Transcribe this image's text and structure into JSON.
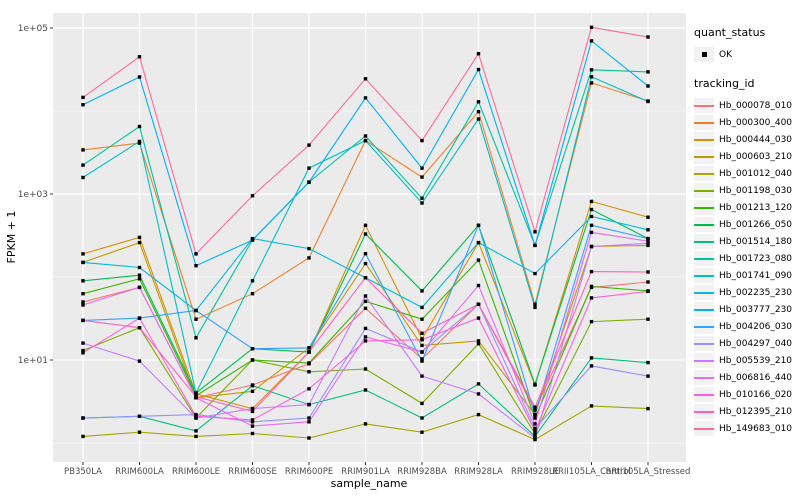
{
  "panel": {
    "background": "#EBEBEB",
    "grid_color": "#FFFFFF",
    "tick_color": "#333333",
    "point_color": "#000000"
  },
  "axes": {
    "x_title": "sample_name",
    "y_title": "FPKM + 1",
    "y_tick_labels": [
      "1e+05",
      "1e+03",
      "1e+01"
    ],
    "y_tick_values": [
      100000,
      1000,
      10
    ],
    "y_minor_values": [
      10000,
      100,
      1
    ]
  },
  "legend": {
    "quant_status_title": "quant_status",
    "quant_status_items": [
      {
        "label": "OK"
      }
    ],
    "tracking_id_title": "tracking_id"
  },
  "chart_data": {
    "type": "line",
    "title": "",
    "xlabel": "sample_name",
    "ylabel": "FPKM + 1",
    "y_scale": "log10",
    "ylim": [
      1,
      155000
    ],
    "grid": true,
    "legend_position": "right",
    "point_shape": "filled-square",
    "categories": [
      "PB350LA",
      "RRIM600LA",
      "RRIM600LE",
      "RRIM600SE",
      "RRIM600PE",
      "RRIM901LA",
      "RRIM928BA",
      "RRIM928LA",
      "RRIM928LE",
      "RRII105LA_Control",
      "RRII105LA_Stressed"
    ],
    "series": [
      {
        "name": "Hb_000078_010",
        "color": "#F8766D",
        "values": [
          50,
          75,
          3.5,
          5,
          9,
          42,
          10.3,
          47,
          2.5,
          75,
          87
        ]
      },
      {
        "name": "Hb_000300_400",
        "color": "#EA8331",
        "values": [
          3400,
          4100,
          31,
          63,
          170,
          4400,
          1600,
          9800,
          47,
          21800,
          13200
        ]
      },
      {
        "name": "Hb_000444_030",
        "color": "#D89000",
        "values": [
          190,
          300,
          3.9,
          2.6,
          12.5,
          420,
          18,
          260,
          5,
          815,
          525
        ]
      },
      {
        "name": "Hb_000603_210",
        "color": "#C09B00",
        "values": [
          150,
          260,
          3.5,
          4.2,
          14,
          145,
          15,
          17,
          2.2,
          233,
          240
        ]
      },
      {
        "name": "Hb_001012_040",
        "color": "#A3A500",
        "values": [
          1.2,
          1.35,
          1.2,
          1.3,
          1.15,
          1.7,
          1.35,
          2.2,
          1.1,
          2.8,
          2.6
        ]
      },
      {
        "name": "Hb_001198_030",
        "color": "#7CAE00",
        "values": [
          13,
          24.5,
          2.0,
          10,
          7.2,
          7.8,
          3.0,
          15.7,
          1.3,
          29,
          31
        ]
      },
      {
        "name": "Hb_001213_120",
        "color": "#39B600",
        "values": [
          63,
          95,
          3.7,
          10,
          9.2,
          51,
          31,
          160,
          2.0,
          77,
          68
        ]
      },
      {
        "name": "Hb_001266_050",
        "color": "#00BB4E",
        "values": [
          90,
          105,
          4.0,
          13.7,
          12.5,
          330,
          68,
          420,
          5.1,
          650,
          290
        ]
      },
      {
        "name": "Hb_001514_180",
        "color": "#00BF7D",
        "values": [
          2.0,
          2.1,
          1.4,
          4.9,
          2.9,
          4.35,
          2.0,
          5.15,
          1.2,
          10.6,
          9.3
        ]
      },
      {
        "name": "Hb_001723_080",
        "color": "#00C1A3",
        "values": [
          2230,
          6500,
          18.5,
          280,
          1390,
          5000,
          890,
          12900,
          240,
          31400,
          29600
        ]
      },
      {
        "name": "Hb_001741_090",
        "color": "#00BFC4",
        "values": [
          1580,
          4300,
          4.0,
          90,
          2050,
          4400,
          780,
          8000,
          43,
          25800,
          13000
        ]
      },
      {
        "name": "Hb_002235_230",
        "color": "#00BAE0",
        "values": [
          150,
          130,
          39.5,
          290,
          220,
          98,
          43,
          260,
          110,
          535,
          370
        ]
      },
      {
        "name": "Hb_003777_230",
        "color": "#00B0F6",
        "values": [
          11900,
          25700,
          137,
          278,
          1390,
          14400,
          2050,
          31600,
          240,
          70000,
          20000
        ]
      },
      {
        "name": "Hb_004206_030",
        "color": "#35A2FF",
        "values": [
          30,
          32,
          39.5,
          13.7,
          14,
          191,
          9.7,
          420,
          2.2,
          420,
          290
        ]
      },
      {
        "name": "Hb_004297_040",
        "color": "#9590FF",
        "values": [
          2.0,
          2.1,
          2.2,
          1.8,
          2.0,
          24,
          12.5,
          47,
          1.5,
          8.5,
          6.4
        ]
      },
      {
        "name": "Hb_005539_210",
        "color": "#C77CFF",
        "values": [
          16,
          9.7,
          2.0,
          2.6,
          2.9,
          59,
          6.4,
          3.9,
          1.15,
          233,
          255
        ]
      },
      {
        "name": "Hb_006816_440",
        "color": "#E76BF3",
        "values": [
          46,
          75,
          3.5,
          1.6,
          1.8,
          19,
          12.5,
          79,
          1.7,
          345,
          270
        ]
      },
      {
        "name": "Hb_010166_020",
        "color": "#FA62DB",
        "values": [
          12.2,
          32,
          2.1,
          1.9,
          4.5,
          17,
          17.5,
          32,
          1.4,
          56,
          67
        ]
      },
      {
        "name": "Hb_012395_210",
        "color": "#FF62BC",
        "values": [
          30,
          24.5,
          3.6,
          2.4,
          12.5,
          98,
          21,
          47,
          2.7,
          116,
          115
        ]
      },
      {
        "name": "Hb_149683_010",
        "color": "#FF6A98",
        "values": [
          14600,
          45000,
          190,
          950,
          3880,
          24400,
          4400,
          49000,
          350,
          102000,
          78000
        ]
      }
    ]
  }
}
